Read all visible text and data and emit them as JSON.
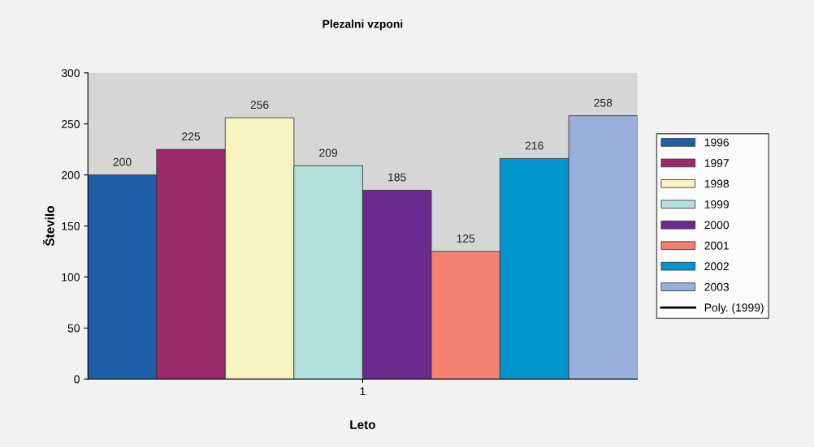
{
  "chart_data": {
    "type": "bar",
    "title": "Plezalni vzponi",
    "xlabel": "Leto",
    "ylabel": "Število",
    "categories": [
      "1"
    ],
    "series": [
      {
        "name": "1996",
        "color": "#1f5fa8",
        "values": [
          200
        ]
      },
      {
        "name": "1997",
        "color": "#9b2a6a",
        "values": [
          225
        ]
      },
      {
        "name": "1998",
        "color": "#f8f4c0",
        "values": [
          256
        ]
      },
      {
        "name": "1999",
        "color": "#b2e0dc",
        "values": [
          209
        ]
      },
      {
        "name": "2000",
        "color": "#6a2a8e",
        "values": [
          185
        ]
      },
      {
        "name": "2001",
        "color": "#f48070",
        "values": [
          125
        ]
      },
      {
        "name": "2002",
        "color": "#0095cc",
        "values": [
          216
        ]
      },
      {
        "name": "2003",
        "color": "#9ab0dc",
        "values": [
          258
        ]
      },
      {
        "name": "Poly. (1999)",
        "type": "line",
        "color": "#000000",
        "values": [
          null
        ]
      }
    ],
    "ylim": [
      0,
      300
    ],
    "yticks": [
      0,
      50,
      100,
      150,
      200,
      250,
      300
    ],
    "data_labels": true,
    "legend": "right",
    "grid": false
  }
}
